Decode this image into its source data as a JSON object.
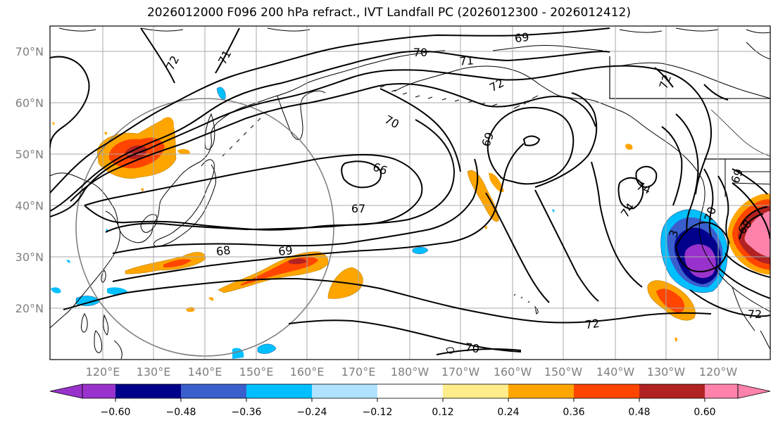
{
  "title": "2026012000 F096 200 hPa refract., IVT Landfall PC (2026012300 - 2026012412)",
  "lat_labels": [
    "70°N",
    "60°N",
    "50°N",
    "40°N",
    "30°N",
    "20°N"
  ],
  "lon_labels": [
    "120°E",
    "130°E",
    "140°E",
    "150°E",
    "160°E",
    "170°E",
    "180°W",
    "170°W",
    "160°W",
    "150°W",
    "140°W",
    "130°W",
    "120°W"
  ],
  "contour_labels": [
    "69",
    "70",
    "71",
    "72",
    "71",
    "72",
    "70",
    "69",
    "66",
    "67",
    "68",
    "69",
    "74",
    "74",
    "70",
    "72",
    "72",
    "70",
    "69",
    "68",
    "3",
    "72"
  ],
  "colorbar": {
    "colors": [
      "#9932cc",
      "#00008b",
      "#3a5fcd",
      "#00bfff",
      "#b0e2ff",
      "#ffffff",
      "#ffec8b",
      "#ffa500",
      "#ff4500",
      "#b22222",
      "#ff82ab"
    ],
    "ticks": [
      "−0.60",
      "−0.48",
      "−0.36",
      "−0.24",
      "−0.12",
      "0.12",
      "0.24",
      "0.36",
      "0.48",
      "0.60"
    ]
  }
}
